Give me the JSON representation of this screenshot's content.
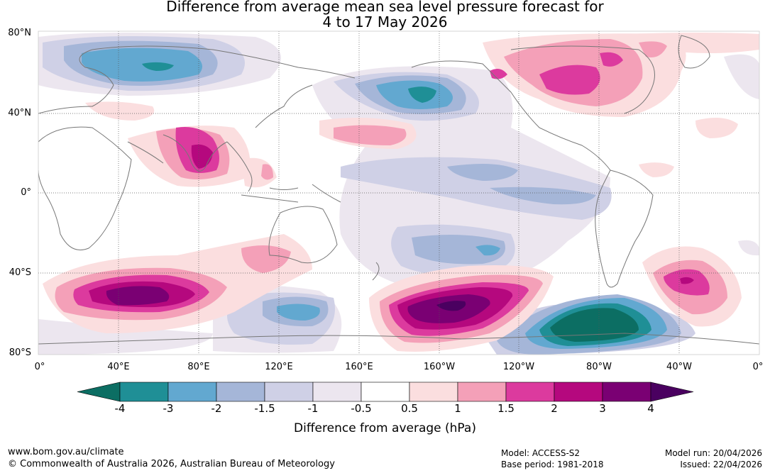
{
  "title": {
    "line1": "Difference from average mean sea level pressure forecast for",
    "line2": "4 to 17 May 2026"
  },
  "axes": {
    "latitude_labels": [
      "80°N",
      "40°N",
      "0°",
      "40°S",
      "80°S"
    ],
    "longitude_labels": [
      "0°",
      "40°E",
      "80°E",
      "120°E",
      "160°E",
      "160°W",
      "120°W",
      "80°W",
      "40°W",
      "0°"
    ]
  },
  "colorbar": {
    "ticks": [
      "-4",
      "-3",
      "-2",
      "-1.5",
      "-1",
      "-0.5",
      "0.5",
      "1",
      "1.5",
      "2",
      "3",
      "4"
    ],
    "colors": [
      "#0c6e63",
      "#1f8f96",
      "#62a8d0",
      "#a5b6d8",
      "#cfd0e6",
      "#ece6ef",
      "#ffffff",
      "#fbdedf",
      "#f4a0b8",
      "#dc3a9e",
      "#b5087e",
      "#7a0073",
      "#4a0060"
    ],
    "label": "Difference from average (hPa)"
  },
  "footer": {
    "url": "www.bom.gov.au/climate",
    "copyright": "© Commonwealth of Australia 2026, Australian Bureau of Meteorology",
    "model": "Model: ACCESS-S2",
    "base_period": "Base period: 1981-2018",
    "model_run": "Model run: 20/04/2026",
    "issued": "Issued: 22/04/2026"
  }
}
